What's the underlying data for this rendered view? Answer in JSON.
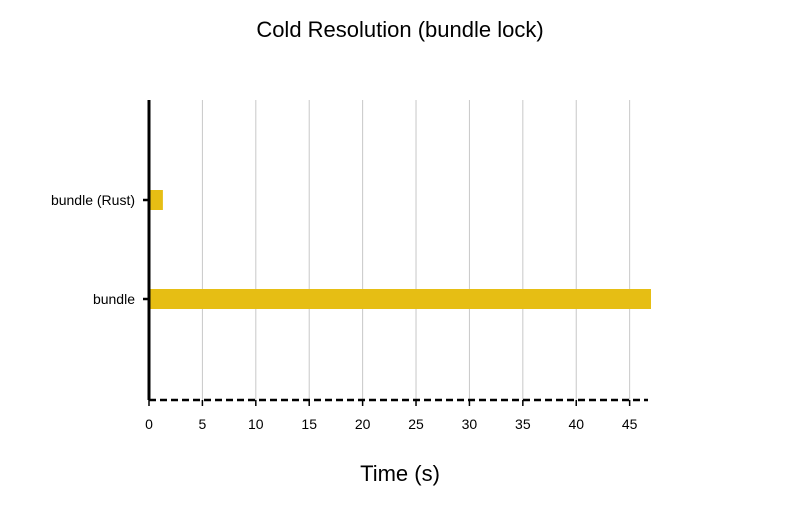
{
  "chart_data": {
    "type": "bar",
    "orientation": "horizontal",
    "title": "Cold Resolution (bundle lock)",
    "xlabel": "Time (s)",
    "ylabel": "",
    "categories": [
      "bundle (Rust)",
      "bundle"
    ],
    "values": [
      1.3,
      47.0
    ],
    "xlim": [
      0,
      47
    ],
    "xticks": [
      0,
      5,
      10,
      15,
      20,
      25,
      30,
      35,
      40,
      45
    ],
    "grid": "vertical",
    "legend": "none",
    "bar_color": "#E6BE14",
    "grid_color": "#C8C8C8",
    "axis_color": "#000000"
  }
}
